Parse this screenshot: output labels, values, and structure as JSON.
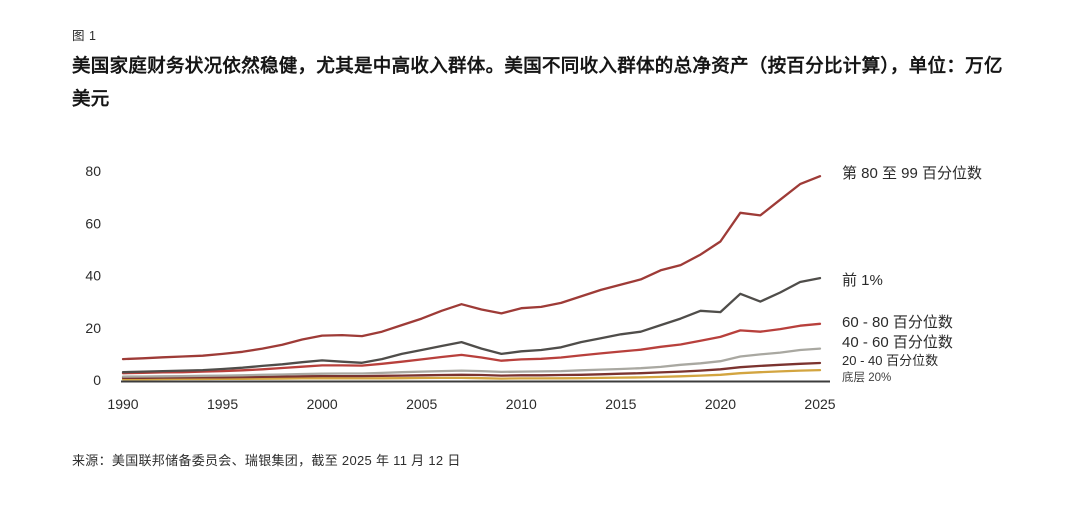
{
  "figure": {
    "label": "图 1",
    "title": "美国家庭财务状况依然稳健，尤其是中高收入群体。美国不同收入群体的总净资产（按百分比计算），单位：万亿美元",
    "source": "来源：美国联邦储备委员会、瑞银集团，截至 2025 年 11 月 12 日"
  },
  "chart_data": {
    "type": "line",
    "title": "美国不同收入群体的总净资产（按百分比计算），单位：万亿美元",
    "xlabel": "",
    "ylabel": "",
    "x_ticks": [
      1990,
      1995,
      2000,
      2005,
      2010,
      2015,
      2020,
      2025
    ],
    "y_ticks": [
      0,
      20,
      40,
      60,
      80
    ],
    "ylim": [
      0,
      80
    ],
    "xlim": [
      1990,
      2025
    ],
    "grid": false,
    "legend_position": "right-of-line-ends",
    "axis_color": "#3c3c3c",
    "tick_text_color": "#2b2b2b",
    "years": [
      1990,
      1991,
      1992,
      1993,
      1994,
      1995,
      1996,
      1997,
      1998,
      1999,
      2000,
      2001,
      2002,
      2003,
      2004,
      2005,
      2006,
      2007,
      2008,
      2009,
      2010,
      2011,
      2012,
      2013,
      2014,
      2015,
      2016,
      2017,
      2018,
      2019,
      2020,
      2021,
      2022,
      2023,
      2024,
      2025
    ],
    "series": [
      {
        "name": "第 80 至 99 百分位数",
        "color": "#9e3b37",
        "values": [
          8.0,
          8.3,
          8.7,
          9.0,
          9.3,
          10.0,
          10.8,
          12.0,
          13.5,
          15.5,
          17.0,
          17.2,
          16.8,
          18.5,
          21.0,
          23.5,
          26.5,
          29.0,
          27.0,
          25.5,
          27.5,
          28.0,
          29.5,
          32.0,
          34.5,
          36.5,
          38.5,
          42.0,
          44.0,
          48.0,
          53.0,
          64.0,
          63.0,
          69.0,
          75.0,
          78.0
        ]
      },
      {
        "name": "前 1%",
        "color": "#4f4d4a",
        "values": [
          3.0,
          3.2,
          3.4,
          3.6,
          3.8,
          4.2,
          4.7,
          5.4,
          6.0,
          6.8,
          7.5,
          7.0,
          6.6,
          8.0,
          10.0,
          11.5,
          13.0,
          14.5,
          12.0,
          10.0,
          11.0,
          11.5,
          12.5,
          14.5,
          16.0,
          17.5,
          18.5,
          21.0,
          23.5,
          26.5,
          26.0,
          33.0,
          30.0,
          33.5,
          37.5,
          39.0
        ]
      },
      {
        "name": "60 - 80 百分位数",
        "color": "#b8403c",
        "values": [
          2.6,
          2.7,
          2.9,
          3.0,
          3.2,
          3.4,
          3.7,
          4.1,
          4.6,
          5.1,
          5.6,
          5.6,
          5.5,
          6.2,
          7.0,
          7.9,
          8.8,
          9.6,
          8.6,
          7.4,
          7.9,
          8.1,
          8.6,
          9.4,
          10.2,
          10.9,
          11.6,
          12.7,
          13.6,
          15.0,
          16.5,
          19.0,
          18.5,
          19.5,
          20.8,
          21.5
        ]
      },
      {
        "name": "40 - 60 百分位数",
        "color": "#a9a8a1",
        "values": [
          1.3,
          1.35,
          1.4,
          1.5,
          1.6,
          1.7,
          1.8,
          2.0,
          2.1,
          2.3,
          2.4,
          2.5,
          2.5,
          2.7,
          3.0,
          3.2,
          3.4,
          3.6,
          3.4,
          3.1,
          3.2,
          3.3,
          3.4,
          3.7,
          4.0,
          4.2,
          4.5,
          5.0,
          5.8,
          6.4,
          7.2,
          9.0,
          9.8,
          10.5,
          11.5,
          12.0
        ]
      },
      {
        "name": "20 - 40 百分位数",
        "color": "#7b332f",
        "values": [
          0.8,
          0.85,
          0.9,
          0.95,
          1.0,
          1.05,
          1.1,
          1.2,
          1.3,
          1.4,
          1.5,
          1.5,
          1.5,
          1.6,
          1.7,
          1.8,
          1.9,
          2.0,
          1.9,
          1.7,
          1.8,
          1.8,
          1.9,
          2.0,
          2.2,
          2.4,
          2.6,
          2.9,
          3.2,
          3.6,
          4.1,
          4.9,
          5.4,
          5.8,
          6.2,
          6.5
        ]
      },
      {
        "name": "底层 20%",
        "color": "#d3a540",
        "values": [
          0.3,
          0.32,
          0.35,
          0.37,
          0.4,
          0.42,
          0.45,
          0.5,
          0.55,
          0.6,
          0.65,
          0.65,
          0.6,
          0.65,
          0.7,
          0.75,
          0.8,
          0.85,
          0.7,
          0.55,
          0.6,
          0.6,
          0.65,
          0.7,
          0.8,
          0.9,
          1.0,
          1.2,
          1.4,
          1.7,
          2.0,
          2.6,
          3.0,
          3.3,
          3.6,
          3.8
        ]
      }
    ]
  }
}
